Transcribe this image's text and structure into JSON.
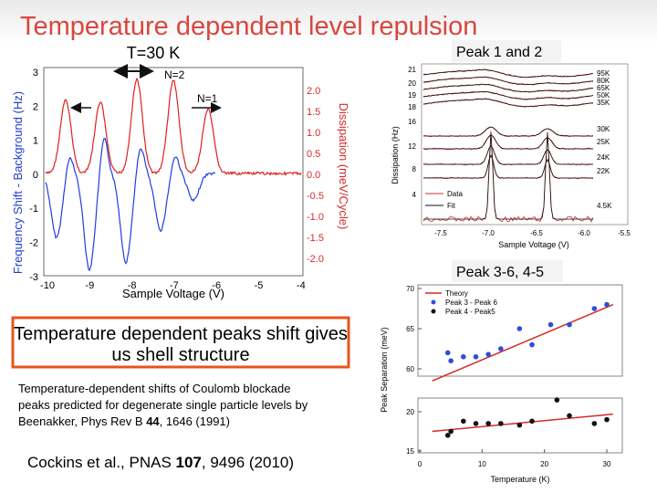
{
  "title": "Temperature dependent level repulsion",
  "left_plot": {
    "heading": "T=30 K",
    "annotations": [
      "N=2",
      "N=1"
    ],
    "x_label": "Sample Voltage (V)",
    "y_label": "Frequency Shift - Background (Hz)",
    "y2_label": "Dissipation (meV/Cycle)",
    "xticks": [
      "-10",
      "-9",
      "-8",
      "-7",
      "-6",
      "-5",
      "-4"
    ],
    "yticks": [
      "3",
      "2",
      "1",
      "0",
      "-1",
      "-2",
      "-3"
    ],
    "y2ticks": [
      "2.0",
      "1.5",
      "1.0",
      "0.5",
      "0.0",
      "-0.5",
      "-1.0",
      "-1.5",
      "-2.0"
    ]
  },
  "top_right_plot": {
    "heading": "Peak 1 and 2",
    "x_label": "Sample Voltage (V)",
    "y_label": "Dissipation (Hz)",
    "xticks": [
      "-7.5",
      "-7.0",
      "-6.5",
      "-6.0",
      "-5.5"
    ],
    "yticks": [
      "21",
      "20",
      "19",
      "18",
      "16",
      "12",
      "8",
      "4"
    ],
    "temperatures": [
      "95K",
      "80K",
      "65K",
      "50K",
      "35K",
      "30K",
      "25K",
      "24K",
      "22K",
      "4.5K"
    ],
    "legend": [
      "Data",
      "Fit"
    ]
  },
  "bottom_right_plot": {
    "heading": "Peak 3-6, 4-5",
    "x_label": "Temperature (K)",
    "y_label": "Peak Separation (meV)",
    "xticks": [
      0,
      10,
      20,
      30
    ],
    "yticks_upper": [
      70,
      65,
      60
    ],
    "yticks_lower": [
      20,
      15
    ],
    "theory_label": "Theory",
    "theory_upper": {
      "x": [
        2,
        31
      ],
      "y": [
        58.5,
        68
      ]
    },
    "theory_lower": {
      "x": [
        2,
        31
      ],
      "y": [
        17.5,
        19.7
      ]
    },
    "series": [
      {
        "name": "Peak 3 - Peak 6",
        "color": "#2b4fd8",
        "x": [
          4.5,
          5,
          7,
          9,
          11,
          13,
          16,
          18,
          21,
          24,
          28,
          30
        ],
        "y": [
          62,
          61,
          61.5,
          61.5,
          61.8,
          62.5,
          65,
          63,
          65.5,
          65.5,
          67.5,
          68
        ]
      },
      {
        "name": "Peak 4 - Peak5",
        "color": "#111111",
        "x": [
          4.5,
          5,
          7,
          9,
          11,
          13,
          16,
          18,
          22,
          24,
          28,
          30
        ],
        "y": [
          17,
          17.5,
          18.8,
          18.5,
          18.5,
          18.5,
          18.3,
          18.8,
          21.5,
          19.5,
          18.5,
          19
        ]
      }
    ]
  },
  "caption_box": [
    "Temperature dependent peaks shift gives",
    "us shell structure"
  ],
  "note": {
    "lines": [
      "Temperature-dependent shifts of Coulomb blockade",
      "peaks predicted for degenerate single particle levels by"
    ],
    "ref_prefix": "Beenakker, Phys Rev B ",
    "volume": "44",
    "ref_suffix": ", 1646 (1991)"
  },
  "citation": {
    "prefix": "Cockins et al., PNAS ",
    "volume": "107",
    "suffix": ", 9496 (2010)"
  }
}
